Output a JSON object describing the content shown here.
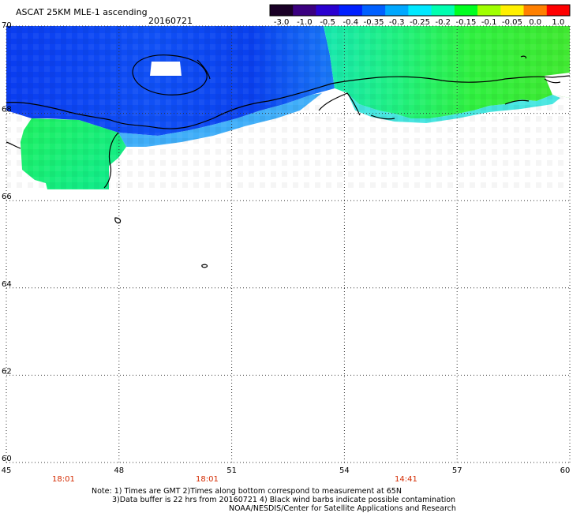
{
  "header": {
    "title": "ASCAT 25KM MLE-1 ascending",
    "date": "20160721"
  },
  "colorbar": {
    "ticks": [
      "-3.0",
      "-1.0",
      "-0.5",
      "-0.4",
      "-0.35",
      "-0.3",
      "-0.25",
      "-0.2",
      "-0.15",
      "-0.1",
      "-0.05",
      "0.0",
      "1.0"
    ],
    "colors": [
      "#1a0026",
      "#3b0080",
      "#2a00d0",
      "#0020ff",
      "#0060ff",
      "#00a8ff",
      "#00e8ff",
      "#00ffb0",
      "#00ff20",
      "#a0ff00",
      "#fff000",
      "#ff8000",
      "#ff0000"
    ]
  },
  "map": {
    "lon_ticks": [
      "45",
      "48",
      "51",
      "54",
      "57",
      "60"
    ],
    "lat_ticks": [
      "70",
      "68",
      "66",
      "64",
      "62",
      "60"
    ],
    "lon_range": [
      45,
      60
    ],
    "lat_range": [
      60,
      70
    ],
    "grid": "dotted"
  },
  "times": [
    "18:01",
    "18:01",
    "14:41"
  ],
  "notes": {
    "line1": "Note: 1) Times are GMT 2)Times along bottom correspond to measurement at 65N",
    "line2": "3)Data buffer is 22 hrs from 20160721 4) Black wind barbs indicate possible contamination",
    "line3": "NOAA/NESDIS/Center for Satellite Applications and Research"
  }
}
